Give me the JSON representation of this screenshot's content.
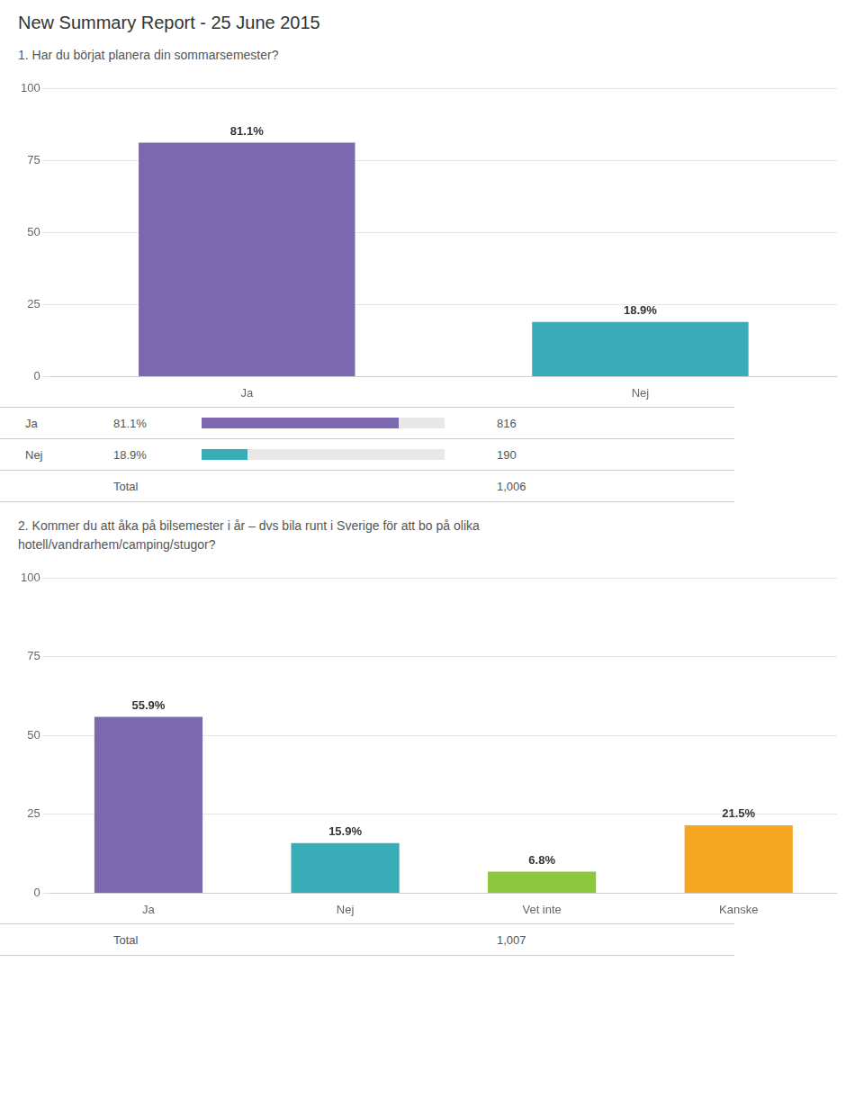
{
  "title": "New Summary Report - 25 June 2015",
  "chart_data": [
    {
      "type": "bar",
      "title": "1. Har du börjat planera din sommarsemester?",
      "categories": [
        "Ja",
        "Nej"
      ],
      "values": [
        81.1,
        18.9
      ],
      "value_labels": [
        "81.1%",
        "18.9%"
      ],
      "data_labels": true,
      "colors": [
        "#7B68AE",
        "#3AACB8"
      ],
      "ylim": [
        0,
        100
      ],
      "yticks": [
        0,
        25,
        50,
        75,
        100
      ],
      "grid": true,
      "counts": [
        816,
        190
      ],
      "total_label": "Total",
      "total": {
        "value": 1006,
        "label": "1,006"
      }
    },
    {
      "type": "bar",
      "title": "2. Kommer du att åka på bilsemester i år – dvs bila runt i Sverige för att bo på olika\nhotell/vandrarhem/camping/stugor?",
      "categories": [
        "Ja",
        "Nej",
        "Vet inte",
        "Kanske"
      ],
      "values": [
        55.9,
        15.9,
        6.8,
        21.5
      ],
      "value_labels": [
        "55.9%",
        "15.9%",
        "6.8%",
        "21.5%"
      ],
      "data_labels": true,
      "colors": [
        "#7B68AE",
        "#3AACB8",
        "#8DC63F",
        "#F5A623"
      ],
      "ylim": [
        0,
        100
      ],
      "yticks": [
        0,
        25,
        50,
        75,
        100
      ],
      "grid": true,
      "total_label": "Total",
      "total": {
        "value": 1007,
        "label": "1,007"
      }
    }
  ]
}
